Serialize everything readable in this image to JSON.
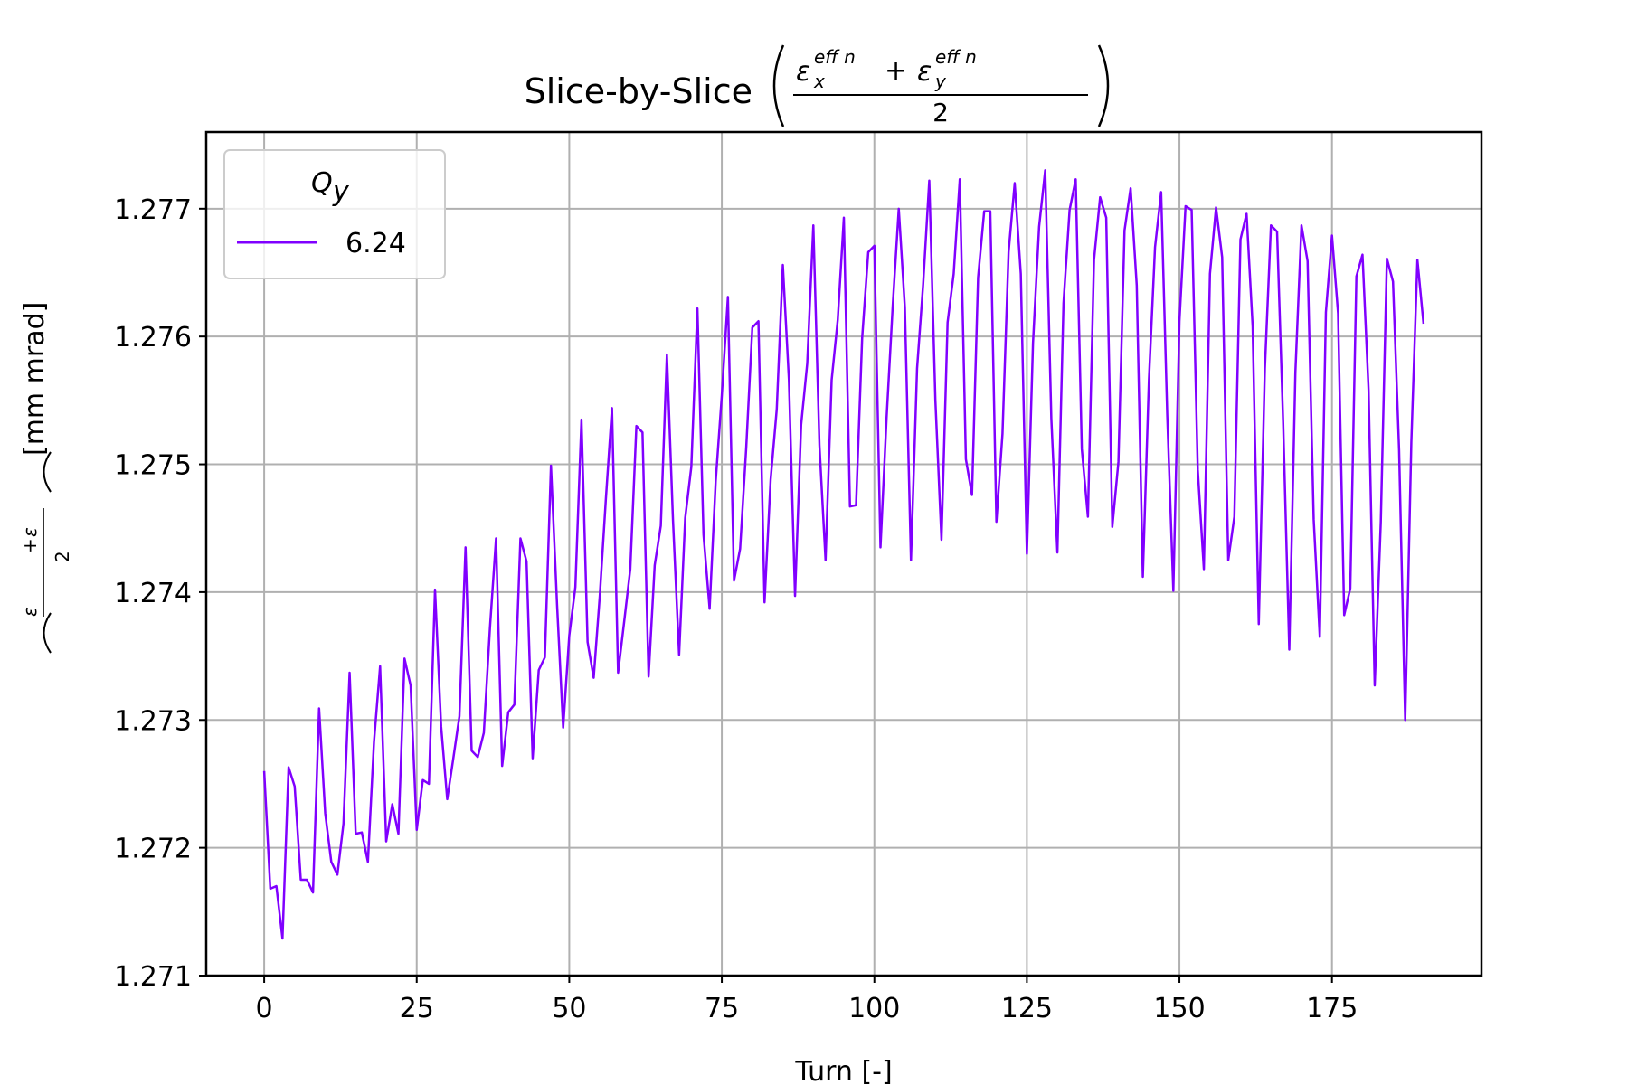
{
  "chart_data": {
    "type": "line",
    "title": "Slice-by-Slice",
    "title_math": {
      "numerator_left": "ε",
      "numerator_left_sup": "eff n",
      "numerator_left_sub": "x",
      "plus": "+",
      "numerator_right": "ε",
      "numerator_right_sup": "eff n",
      "numerator_right_sub": "y",
      "denominator": "2"
    },
    "xlabel": "Turn [-]",
    "ylabel_unit": "[mm mrad]",
    "xlim": [
      -9.5,
      199.5
    ],
    "ylim": [
      1.271,
      1.2776
    ],
    "xticks": [
      0,
      25,
      50,
      75,
      100,
      125,
      150,
      175
    ],
    "yticks": [
      1.271,
      1.272,
      1.273,
      1.274,
      1.275,
      1.276,
      1.277
    ],
    "ytick_labels": [
      "1.271",
      "1.272",
      "1.273",
      "1.274",
      "1.275",
      "1.276",
      "1.277"
    ],
    "grid": true,
    "legend": {
      "title": "Q",
      "title_sub": "y",
      "placement": "top-left"
    },
    "series": [
      {
        "name": "6.24",
        "color": "#8000ff",
        "x": [
          0,
          1,
          2,
          3,
          4,
          5,
          6,
          7,
          8,
          9,
          10,
          11,
          12,
          13,
          14,
          15,
          16,
          17,
          18,
          19,
          20,
          21,
          22,
          23,
          24,
          25,
          26,
          27,
          28,
          29,
          30,
          31,
          32,
          33,
          34,
          35,
          36,
          37,
          38,
          39,
          40,
          41,
          42,
          43,
          44,
          45,
          46,
          47,
          48,
          49,
          50,
          51,
          52,
          53,
          54,
          55,
          56,
          57,
          58,
          59,
          60,
          61,
          62,
          63,
          64,
          65,
          66,
          67,
          68,
          69,
          70,
          71,
          72,
          73,
          74,
          75,
          76,
          77,
          78,
          79,
          80,
          81,
          82,
          83,
          84,
          85,
          86,
          87,
          88,
          89,
          90,
          91,
          92,
          93,
          94,
          95,
          96,
          97,
          98,
          99,
          100,
          101,
          102,
          103,
          104,
          105,
          106,
          107,
          108,
          109,
          110,
          111,
          112,
          113,
          114,
          115,
          116,
          117,
          118,
          119,
          120,
          121,
          122,
          123,
          124,
          125,
          126,
          127,
          128,
          129,
          130,
          131,
          132,
          133,
          134,
          135,
          136,
          137,
          138,
          139,
          140,
          141,
          142,
          143,
          144,
          145,
          146,
          147,
          148,
          149,
          150,
          151,
          152,
          153,
          154,
          155,
          156,
          157,
          158,
          159,
          160,
          161,
          162,
          163,
          164,
          165,
          166,
          167,
          168,
          169,
          170,
          171,
          172,
          173,
          174,
          175,
          176,
          177,
          178,
          179,
          180,
          181,
          182,
          183,
          184,
          185,
          186,
          187,
          188,
          189,
          190
        ],
        "values": [
          1.2726,
          1.27168,
          1.2717,
          1.27129,
          1.27263,
          1.27248,
          1.27175,
          1.27175,
          1.27165,
          1.27309,
          1.27227,
          1.27189,
          1.27179,
          1.27219,
          1.27337,
          1.27211,
          1.27212,
          1.27189,
          1.27283,
          1.27342,
          1.27205,
          1.27234,
          1.27211,
          1.27348,
          1.27327,
          1.27214,
          1.27253,
          1.2725,
          1.27402,
          1.27295,
          1.27238,
          1.2727,
          1.27303,
          1.27435,
          1.27276,
          1.27271,
          1.2729,
          1.27372,
          1.27442,
          1.27264,
          1.27306,
          1.27312,
          1.27442,
          1.27424,
          1.2727,
          1.27339,
          1.27349,
          1.27499,
          1.2739,
          1.27294,
          1.27366,
          1.27404,
          1.27535,
          1.27361,
          1.27333,
          1.27397,
          1.27473,
          1.27544,
          1.27337,
          1.27377,
          1.27418,
          1.2753,
          1.27525,
          1.27334,
          1.27421,
          1.27452,
          1.27586,
          1.27456,
          1.27351,
          1.27458,
          1.27498,
          1.27622,
          1.27445,
          1.27387,
          1.27487,
          1.27554,
          1.27631,
          1.27409,
          1.27434,
          1.27513,
          1.27607,
          1.27612,
          1.27392,
          1.27488,
          1.27543,
          1.27656,
          1.27566,
          1.27397,
          1.27531,
          1.27579,
          1.27687,
          1.27515,
          1.27425,
          1.27566,
          1.27613,
          1.27693,
          1.27467,
          1.27468,
          1.27599,
          1.27666,
          1.27671,
          1.27435,
          1.27536,
          1.27623,
          1.277,
          1.27623,
          1.27425,
          1.27575,
          1.27641,
          1.27722,
          1.2755,
          1.27441,
          1.27611,
          1.27649,
          1.27723,
          1.27504,
          1.27476,
          1.27646,
          1.27698,
          1.27698,
          1.27455,
          1.27524,
          1.27666,
          1.2772,
          1.27649,
          1.2743,
          1.27595,
          1.27686,
          1.2773,
          1.27536,
          1.27431,
          1.27626,
          1.27699,
          1.27723,
          1.27512,
          1.27459,
          1.2766,
          1.27709,
          1.27693,
          1.27451,
          1.27502,
          1.27683,
          1.27716,
          1.2764,
          1.27412,
          1.27566,
          1.2767,
          1.27713,
          1.27539,
          1.27401,
          1.27612,
          1.27702,
          1.27699,
          1.27496,
          1.27418,
          1.27649,
          1.27701,
          1.27662,
          1.27425,
          1.27459,
          1.27676,
          1.27696,
          1.27608,
          1.27375,
          1.27575,
          1.27687,
          1.27682,
          1.27532,
          1.27355,
          1.27572,
          1.27687,
          1.27659,
          1.27457,
          1.27365,
          1.27619,
          1.27679,
          1.27618,
          1.27382,
          1.27403,
          1.27647,
          1.27664,
          1.27558,
          1.27327,
          1.27455,
          1.27661,
          1.27643,
          1.27511,
          1.273,
          1.27517,
          1.2766,
          1.2761
        ]
      }
    ]
  }
}
